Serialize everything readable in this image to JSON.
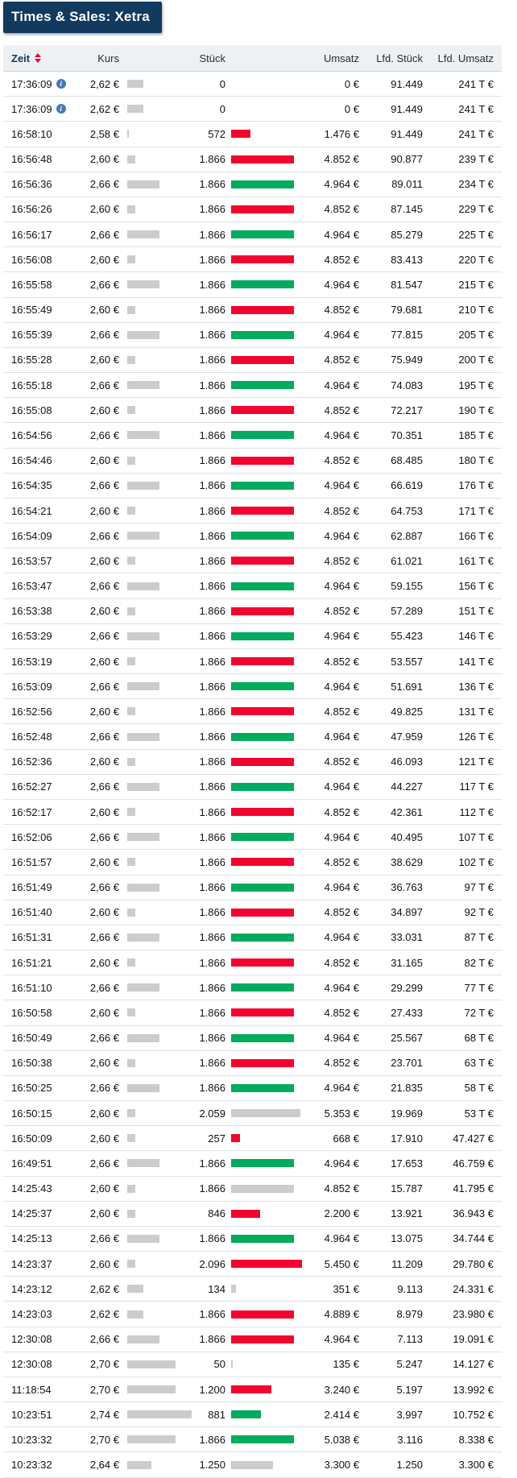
{
  "title": "Times & Sales: Xetra",
  "colors": {
    "accent_navy": "#12395e",
    "tick_up_green": "#00ab5e",
    "tick_down_red": "#f3032e",
    "tick_neutral_gray": "#cccccc",
    "kurs_bar_gray": "#cccccc",
    "sort_arrow_red": "#e40138",
    "info_icon_blue": "#4a79b6",
    "header_bg": "#eef1f3"
  },
  "table": {
    "columns": {
      "zeit": "Zeit",
      "kurs": "Kurs",
      "stueck": "Stück",
      "umsatz": "Umsatz",
      "lfd_stueck": "Lfd. Stück",
      "lfd_umsatz": "Lfd. Umsatz"
    },
    "sorted_by": "zeit",
    "bar_scale": {
      "price_min": 2.58,
      "price_max": 2.74,
      "stueck_max": 2096
    },
    "rows": [
      {
        "time": "17:36:09",
        "info": true,
        "kurs": "2,62 €",
        "kurs_value": 2.62,
        "stueck": "0",
        "stueck_value": 0,
        "tick": "none",
        "umsatz": "0 €",
        "lfd_stueck": "91.449",
        "lfd_umsatz": "241 T €"
      },
      {
        "time": "17:36:09",
        "info": true,
        "kurs": "2,62 €",
        "kurs_value": 2.62,
        "stueck": "0",
        "stueck_value": 0,
        "tick": "none",
        "umsatz": "0 €",
        "lfd_stueck": "91.449",
        "lfd_umsatz": "241 T €"
      },
      {
        "time": "16:58:10",
        "kurs": "2,58 €",
        "kurs_value": 2.58,
        "stueck": "572",
        "stueck_value": 572,
        "tick": "down",
        "umsatz": "1.476 €",
        "lfd_stueck": "91.449",
        "lfd_umsatz": "241 T €"
      },
      {
        "time": "16:56:48",
        "kurs": "2,60 €",
        "kurs_value": 2.6,
        "stueck": "1.866",
        "stueck_value": 1866,
        "tick": "down",
        "umsatz": "4.852 €",
        "lfd_stueck": "90.877",
        "lfd_umsatz": "239 T €"
      },
      {
        "time": "16:56:36",
        "kurs": "2,66 €",
        "kurs_value": 2.66,
        "stueck": "1.866",
        "stueck_value": 1866,
        "tick": "up",
        "umsatz": "4.964 €",
        "lfd_stueck": "89.011",
        "lfd_umsatz": "234 T €"
      },
      {
        "time": "16:56:26",
        "kurs": "2,60 €",
        "kurs_value": 2.6,
        "stueck": "1.866",
        "stueck_value": 1866,
        "tick": "down",
        "umsatz": "4.852 €",
        "lfd_stueck": "87.145",
        "lfd_umsatz": "229 T €"
      },
      {
        "time": "16:56:17",
        "kurs": "2,66 €",
        "kurs_value": 2.66,
        "stueck": "1.866",
        "stueck_value": 1866,
        "tick": "up",
        "umsatz": "4.964 €",
        "lfd_stueck": "85.279",
        "lfd_umsatz": "225 T €"
      },
      {
        "time": "16:56:08",
        "kurs": "2,60 €",
        "kurs_value": 2.6,
        "stueck": "1.866",
        "stueck_value": 1866,
        "tick": "down",
        "umsatz": "4.852 €",
        "lfd_stueck": "83.413",
        "lfd_umsatz": "220 T €"
      },
      {
        "time": "16:55:58",
        "kurs": "2,66 €",
        "kurs_value": 2.66,
        "stueck": "1.866",
        "stueck_value": 1866,
        "tick": "up",
        "umsatz": "4.964 €",
        "lfd_stueck": "81.547",
        "lfd_umsatz": "215 T €"
      },
      {
        "time": "16:55:49",
        "kurs": "2,60 €",
        "kurs_value": 2.6,
        "stueck": "1.866",
        "stueck_value": 1866,
        "tick": "down",
        "umsatz": "4.852 €",
        "lfd_stueck": "79.681",
        "lfd_umsatz": "210 T €"
      },
      {
        "time": "16:55:39",
        "kurs": "2,66 €",
        "kurs_value": 2.66,
        "stueck": "1.866",
        "stueck_value": 1866,
        "tick": "up",
        "umsatz": "4.964 €",
        "lfd_stueck": "77.815",
        "lfd_umsatz": "205 T €"
      },
      {
        "time": "16:55:28",
        "kurs": "2,60 €",
        "kurs_value": 2.6,
        "stueck": "1.866",
        "stueck_value": 1866,
        "tick": "down",
        "umsatz": "4.852 €",
        "lfd_stueck": "75.949",
        "lfd_umsatz": "200 T €"
      },
      {
        "time": "16:55:18",
        "kurs": "2,66 €",
        "kurs_value": 2.66,
        "stueck": "1.866",
        "stueck_value": 1866,
        "tick": "up",
        "umsatz": "4.964 €",
        "lfd_stueck": "74.083",
        "lfd_umsatz": "195 T €"
      },
      {
        "time": "16:55:08",
        "kurs": "2,60 €",
        "kurs_value": 2.6,
        "stueck": "1.866",
        "stueck_value": 1866,
        "tick": "down",
        "umsatz": "4.852 €",
        "lfd_stueck": "72.217",
        "lfd_umsatz": "190 T €"
      },
      {
        "time": "16:54:56",
        "kurs": "2,66 €",
        "kurs_value": 2.66,
        "stueck": "1.866",
        "stueck_value": 1866,
        "tick": "up",
        "umsatz": "4.964 €",
        "lfd_stueck": "70.351",
        "lfd_umsatz": "185 T €"
      },
      {
        "time": "16:54:46",
        "kurs": "2,60 €",
        "kurs_value": 2.6,
        "stueck": "1.866",
        "stueck_value": 1866,
        "tick": "down",
        "umsatz": "4.852 €",
        "lfd_stueck": "68.485",
        "lfd_umsatz": "180 T €"
      },
      {
        "time": "16:54:35",
        "kurs": "2,66 €",
        "kurs_value": 2.66,
        "stueck": "1.866",
        "stueck_value": 1866,
        "tick": "up",
        "umsatz": "4.964 €",
        "lfd_stueck": "66.619",
        "lfd_umsatz": "176 T €"
      },
      {
        "time": "16:54:21",
        "kurs": "2,60 €",
        "kurs_value": 2.6,
        "stueck": "1.866",
        "stueck_value": 1866,
        "tick": "down",
        "umsatz": "4.852 €",
        "lfd_stueck": "64.753",
        "lfd_umsatz": "171 T €"
      },
      {
        "time": "16:54:09",
        "kurs": "2,66 €",
        "kurs_value": 2.66,
        "stueck": "1.866",
        "stueck_value": 1866,
        "tick": "up",
        "umsatz": "4.964 €",
        "lfd_stueck": "62.887",
        "lfd_umsatz": "166 T €"
      },
      {
        "time": "16:53:57",
        "kurs": "2,60 €",
        "kurs_value": 2.6,
        "stueck": "1.866",
        "stueck_value": 1866,
        "tick": "down",
        "umsatz": "4.852 €",
        "lfd_stueck": "61.021",
        "lfd_umsatz": "161 T €"
      },
      {
        "time": "16:53:47",
        "kurs": "2,66 €",
        "kurs_value": 2.66,
        "stueck": "1.866",
        "stueck_value": 1866,
        "tick": "up",
        "umsatz": "4.964 €",
        "lfd_stueck": "59.155",
        "lfd_umsatz": "156 T €"
      },
      {
        "time": "16:53:38",
        "kurs": "2,60 €",
        "kurs_value": 2.6,
        "stueck": "1.866",
        "stueck_value": 1866,
        "tick": "down",
        "umsatz": "4.852 €",
        "lfd_stueck": "57.289",
        "lfd_umsatz": "151 T €"
      },
      {
        "time": "16:53:29",
        "kurs": "2,66 €",
        "kurs_value": 2.66,
        "stueck": "1.866",
        "stueck_value": 1866,
        "tick": "up",
        "umsatz": "4.964 €",
        "lfd_stueck": "55.423",
        "lfd_umsatz": "146 T €"
      },
      {
        "time": "16:53:19",
        "kurs": "2,60 €",
        "kurs_value": 2.6,
        "stueck": "1.866",
        "stueck_value": 1866,
        "tick": "down",
        "umsatz": "4.852 €",
        "lfd_stueck": "53.557",
        "lfd_umsatz": "141 T €"
      },
      {
        "time": "16:53:09",
        "kurs": "2,66 €",
        "kurs_value": 2.66,
        "stueck": "1.866",
        "stueck_value": 1866,
        "tick": "up",
        "umsatz": "4.964 €",
        "lfd_stueck": "51.691",
        "lfd_umsatz": "136 T €"
      },
      {
        "time": "16:52:56",
        "kurs": "2,60 €",
        "kurs_value": 2.6,
        "stueck": "1.866",
        "stueck_value": 1866,
        "tick": "down",
        "umsatz": "4.852 €",
        "lfd_stueck": "49.825",
        "lfd_umsatz": "131 T €"
      },
      {
        "time": "16:52:48",
        "kurs": "2,66 €",
        "kurs_value": 2.66,
        "stueck": "1.866",
        "stueck_value": 1866,
        "tick": "up",
        "umsatz": "4.964 €",
        "lfd_stueck": "47.959",
        "lfd_umsatz": "126 T €"
      },
      {
        "time": "16:52:36",
        "kurs": "2,60 €",
        "kurs_value": 2.6,
        "stueck": "1.866",
        "stueck_value": 1866,
        "tick": "down",
        "umsatz": "4.852 €",
        "lfd_stueck": "46.093",
        "lfd_umsatz": "121 T €"
      },
      {
        "time": "16:52:27",
        "kurs": "2,66 €",
        "kurs_value": 2.66,
        "stueck": "1.866",
        "stueck_value": 1866,
        "tick": "up",
        "umsatz": "4.964 €",
        "lfd_stueck": "44.227",
        "lfd_umsatz": "117 T €"
      },
      {
        "time": "16:52:17",
        "kurs": "2,60 €",
        "kurs_value": 2.6,
        "stueck": "1.866",
        "stueck_value": 1866,
        "tick": "down",
        "umsatz": "4.852 €",
        "lfd_stueck": "42.361",
        "lfd_umsatz": "112 T €"
      },
      {
        "time": "16:52:06",
        "kurs": "2,66 €",
        "kurs_value": 2.66,
        "stueck": "1.866",
        "stueck_value": 1866,
        "tick": "up",
        "umsatz": "4.964 €",
        "lfd_stueck": "40.495",
        "lfd_umsatz": "107 T €"
      },
      {
        "time": "16:51:57",
        "kurs": "2,60 €",
        "kurs_value": 2.6,
        "stueck": "1.866",
        "stueck_value": 1866,
        "tick": "down",
        "umsatz": "4.852 €",
        "lfd_stueck": "38.629",
        "lfd_umsatz": "102 T €"
      },
      {
        "time": "16:51:49",
        "kurs": "2,66 €",
        "kurs_value": 2.66,
        "stueck": "1.866",
        "stueck_value": 1866,
        "tick": "up",
        "umsatz": "4.964 €",
        "lfd_stueck": "36.763",
        "lfd_umsatz": "97 T €"
      },
      {
        "time": "16:51:40",
        "kurs": "2,60 €",
        "kurs_value": 2.6,
        "stueck": "1.866",
        "stueck_value": 1866,
        "tick": "down",
        "umsatz": "4.852 €",
        "lfd_stueck": "34.897",
        "lfd_umsatz": "92 T €"
      },
      {
        "time": "16:51:31",
        "kurs": "2,66 €",
        "kurs_value": 2.66,
        "stueck": "1.866",
        "stueck_value": 1866,
        "tick": "up",
        "umsatz": "4.964 €",
        "lfd_stueck": "33.031",
        "lfd_umsatz": "87 T €"
      },
      {
        "time": "16:51:21",
        "kurs": "2,60 €",
        "kurs_value": 2.6,
        "stueck": "1.866",
        "stueck_value": 1866,
        "tick": "down",
        "umsatz": "4.852 €",
        "lfd_stueck": "31.165",
        "lfd_umsatz": "82 T €"
      },
      {
        "time": "16:51:10",
        "kurs": "2,66 €",
        "kurs_value": 2.66,
        "stueck": "1.866",
        "stueck_value": 1866,
        "tick": "up",
        "umsatz": "4.964 €",
        "lfd_stueck": "29.299",
        "lfd_umsatz": "77 T €"
      },
      {
        "time": "16:50:58",
        "kurs": "2,60 €",
        "kurs_value": 2.6,
        "stueck": "1.866",
        "stueck_value": 1866,
        "tick": "down",
        "umsatz": "4.852 €",
        "lfd_stueck": "27.433",
        "lfd_umsatz": "72 T €"
      },
      {
        "time": "16:50:49",
        "kurs": "2,66 €",
        "kurs_value": 2.66,
        "stueck": "1.866",
        "stueck_value": 1866,
        "tick": "up",
        "umsatz": "4.964 €",
        "lfd_stueck": "25.567",
        "lfd_umsatz": "68 T €"
      },
      {
        "time": "16:50:38",
        "kurs": "2,60 €",
        "kurs_value": 2.6,
        "stueck": "1.866",
        "stueck_value": 1866,
        "tick": "down",
        "umsatz": "4.852 €",
        "lfd_stueck": "23.701",
        "lfd_umsatz": "63 T €"
      },
      {
        "time": "16:50:25",
        "kurs": "2,66 €",
        "kurs_value": 2.66,
        "stueck": "1.866",
        "stueck_value": 1866,
        "tick": "up",
        "umsatz": "4.964 €",
        "lfd_stueck": "21.835",
        "lfd_umsatz": "58 T €"
      },
      {
        "time": "16:50:15",
        "kurs": "2,60 €",
        "kurs_value": 2.6,
        "stueck": "2.059",
        "stueck_value": 2059,
        "tick": "neutral",
        "umsatz": "5.353 €",
        "lfd_stueck": "19.969",
        "lfd_umsatz": "53 T €"
      },
      {
        "time": "16:50:09",
        "kurs": "2,60 €",
        "kurs_value": 2.6,
        "stueck": "257",
        "stueck_value": 257,
        "tick": "down",
        "umsatz": "668 €",
        "lfd_stueck": "17.910",
        "lfd_umsatz": "47.427 €"
      },
      {
        "time": "16:49:51",
        "kurs": "2,66 €",
        "kurs_value": 2.66,
        "stueck": "1.866",
        "stueck_value": 1866,
        "tick": "up",
        "umsatz": "4.964 €",
        "lfd_stueck": "17.653",
        "lfd_umsatz": "46.759 €"
      },
      {
        "time": "14:25:43",
        "kurs": "2,60 €",
        "kurs_value": 2.6,
        "stueck": "1.866",
        "stueck_value": 1866,
        "tick": "neutral",
        "umsatz": "4.852 €",
        "lfd_stueck": "15.787",
        "lfd_umsatz": "41.795 €"
      },
      {
        "time": "14:25:37",
        "kurs": "2,60 €",
        "kurs_value": 2.6,
        "stueck": "846",
        "stueck_value": 846,
        "tick": "down",
        "umsatz": "2.200 €",
        "lfd_stueck": "13.921",
        "lfd_umsatz": "36.943 €"
      },
      {
        "time": "14:25:13",
        "kurs": "2,66 €",
        "kurs_value": 2.66,
        "stueck": "1.866",
        "stueck_value": 1866,
        "tick": "up",
        "umsatz": "4.964 €",
        "lfd_stueck": "13.075",
        "lfd_umsatz": "34.744 €"
      },
      {
        "time": "14:23:37",
        "kurs": "2,60 €",
        "kurs_value": 2.6,
        "stueck": "2.096",
        "stueck_value": 2096,
        "tick": "down",
        "umsatz": "5.450 €",
        "lfd_stueck": "11.209",
        "lfd_umsatz": "29.780 €"
      },
      {
        "time": "14:23:12",
        "kurs": "2,62 €",
        "kurs_value": 2.62,
        "stueck": "134",
        "stueck_value": 134,
        "tick": "neutral",
        "umsatz": "351 €",
        "lfd_stueck": "9.113",
        "lfd_umsatz": "24.331 €"
      },
      {
        "time": "14:23:03",
        "kurs": "2,62 €",
        "kurs_value": 2.62,
        "stueck": "1.866",
        "stueck_value": 1866,
        "tick": "down",
        "umsatz": "4.889 €",
        "lfd_stueck": "8.979",
        "lfd_umsatz": "23.980 €"
      },
      {
        "time": "12:30:08",
        "kurs": "2,66 €",
        "kurs_value": 2.66,
        "stueck": "1.866",
        "stueck_value": 1866,
        "tick": "down",
        "umsatz": "4.964 €",
        "lfd_stueck": "7.113",
        "lfd_umsatz": "19.091 €"
      },
      {
        "time": "12:30:08",
        "kurs": "2,70 €",
        "kurs_value": 2.7,
        "stueck": "50",
        "stueck_value": 50,
        "tick": "neutral",
        "umsatz": "135 €",
        "lfd_stueck": "5.247",
        "lfd_umsatz": "14.127 €"
      },
      {
        "time": "11:18:54",
        "kurs": "2,70 €",
        "kurs_value": 2.7,
        "stueck": "1.200",
        "stueck_value": 1200,
        "tick": "down",
        "umsatz": "3.240 €",
        "lfd_stueck": "5.197",
        "lfd_umsatz": "13.992 €"
      },
      {
        "time": "10:23:51",
        "kurs": "2,74 €",
        "kurs_value": 2.74,
        "stueck": "881",
        "stueck_value": 881,
        "tick": "up",
        "umsatz": "2.414 €",
        "lfd_stueck": "3.997",
        "lfd_umsatz": "10.752 €"
      },
      {
        "time": "10:23:32",
        "kurs": "2,70 €",
        "kurs_value": 2.7,
        "stueck": "1.866",
        "stueck_value": 1866,
        "tick": "up",
        "umsatz": "5.038 €",
        "lfd_stueck": "3.116",
        "lfd_umsatz": "8.338 €"
      },
      {
        "time": "10:23:32",
        "kurs": "2,64 €",
        "kurs_value": 2.64,
        "stueck": "1.250",
        "stueck_value": 1250,
        "tick": "neutral",
        "umsatz": "3.300 €",
        "lfd_stueck": "1.250",
        "lfd_umsatz": "3.300 €"
      }
    ]
  }
}
